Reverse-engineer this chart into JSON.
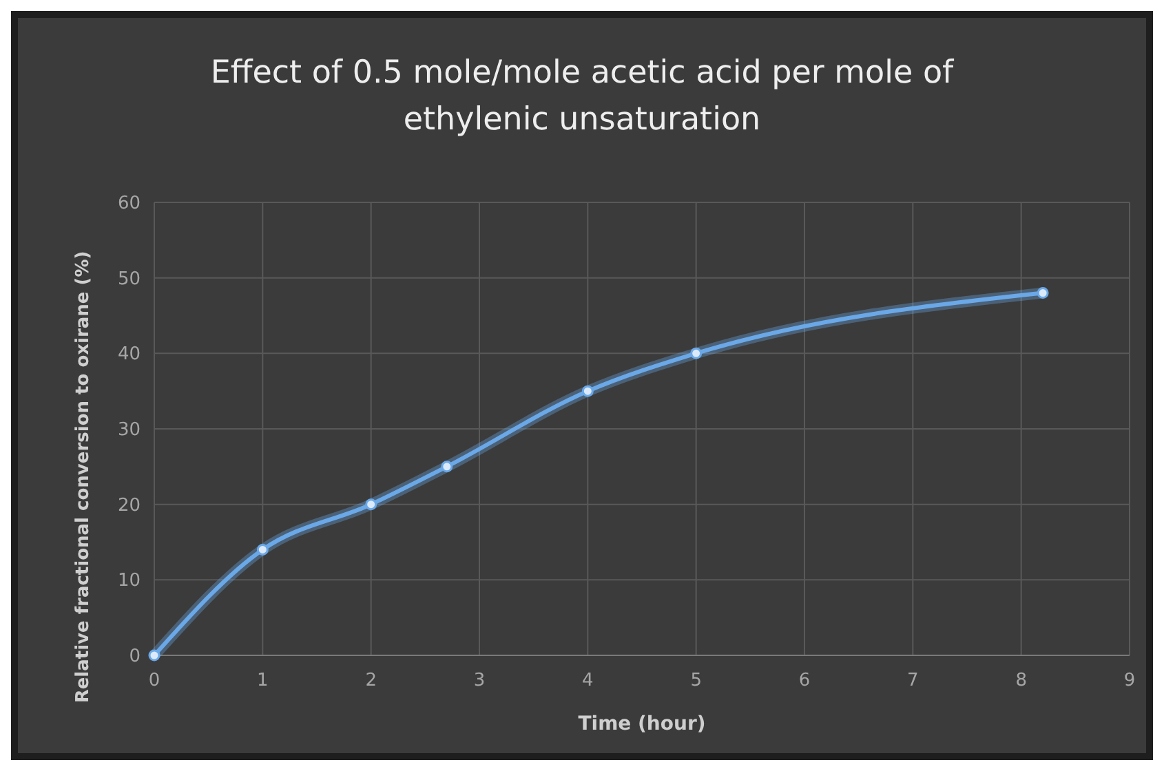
{
  "chart_data": {
    "type": "line",
    "title": "Effect of 0.5 mole/mole acetic acid per mole of ethylenic unsaturation",
    "xlabel": "Time (hour)",
    "ylabel": "Relative fractional conversion to oxirane (%)",
    "x": [
      0,
      1,
      2,
      2.7,
      4,
      5,
      8.2
    ],
    "series": [
      {
        "color": "#6aa8e8",
        "values": [
          0,
          14,
          20,
          25,
          35,
          40,
          48
        ]
      }
    ],
    "xlim": [
      0,
      9
    ],
    "xticks": [
      0,
      1,
      2,
      3,
      4,
      5,
      6,
      7,
      8,
      9
    ],
    "ylim": [
      0,
      60
    ],
    "yticks": [
      0,
      10,
      20,
      30,
      40,
      50,
      60
    ],
    "grid": true,
    "marker": "circle",
    "line_style": "solid"
  }
}
